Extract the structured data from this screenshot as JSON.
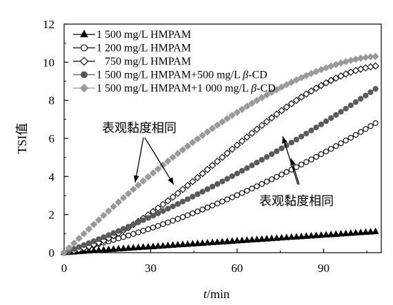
{
  "chart_data": {
    "type": "line",
    "xlabel_italic": "t",
    "xlabel_unit": "/min",
    "ylabel": "TSI值",
    "xlim": [
      0,
      110
    ],
    "ylim": [
      0,
      12
    ],
    "xticks": [
      "0",
      "30",
      "60",
      "90"
    ],
    "yticks": [
      "0",
      "2",
      "4",
      "6",
      "8",
      "10",
      "12"
    ],
    "grid": false,
    "legend_position": "top-left",
    "series": [
      {
        "name_prefix": "1 500 mg/L HMPAM",
        "name_italic": "",
        "name_suffix": "",
        "marker": "triangle",
        "color": "#000000",
        "fill": "#000000",
        "x_start": 0,
        "x_end": 108,
        "y_end": 1.1,
        "shape": "linear"
      },
      {
        "name_prefix": "1 200 mg/L HMPAM",
        "name_italic": "",
        "name_suffix": "",
        "marker": "circle",
        "color": "#000000",
        "fill": "#ffffff",
        "x_start": 0,
        "x_end": 108,
        "y_end": 6.8,
        "shape": "concave"
      },
      {
        "name_prefix": "   750 mg/L HMPAM",
        "name_italic": "",
        "name_suffix": "",
        "marker": "diamond",
        "color": "#000000",
        "fill": "#ffffff",
        "x_start": 0,
        "x_end": 108,
        "y_end": 9.8,
        "shape": "sigmoid"
      },
      {
        "name_prefix": "1 500 mg/L HMPAM+500 mg/L ",
        "name_italic": "β",
        "name_suffix": "-CD",
        "marker": "circle",
        "color": "#5a5a5a",
        "fill": "#5a5a5a",
        "x_start": 0,
        "x_end": 108,
        "y_end": 8.6,
        "shape": "mild-concave"
      },
      {
        "name_prefix": "1 500 mg/L HMPAM+1 000 mg/L ",
        "name_italic": "β",
        "name_suffix": "-CD",
        "marker": "diamond",
        "color": "#9a9a9a",
        "fill": "#9a9a9a",
        "x_start": 0,
        "x_end": 108,
        "y_end": 10.3,
        "shape": "convex"
      }
    ],
    "annotations": [
      {
        "text": "表观黏度相同"
      },
      {
        "text": "表观黏度相同"
      }
    ]
  }
}
